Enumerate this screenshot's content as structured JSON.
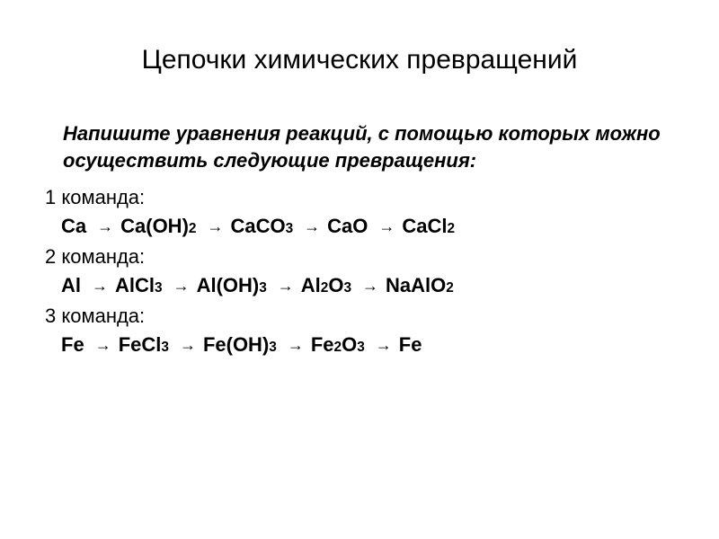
{
  "title": "Цепочки химических превращений",
  "instruction": "Напишите уравнения реакций, с помощью которых можно осуществить следующие превращения:",
  "teams": [
    {
      "label": "1 команда:",
      "chain": [
        "Ca",
        "Ca(OH)₂",
        "CaCO₃",
        "CaO",
        "CaCl₂"
      ]
    },
    {
      "label": "2 команда:",
      "chain": [
        "Al",
        "AlCl₃",
        "Al(OH)₃",
        "Al₂O₃",
        "NaAlO₂"
      ]
    },
    {
      "label": "3 команда:",
      "chain": [
        "Fe",
        "FeCl₃",
        "Fe(OH)₃",
        "Fe₂O₃",
        "Fe"
      ]
    }
  ],
  "styling": {
    "background_color": "#ffffff",
    "text_color": "#000000",
    "title_fontsize": 30,
    "body_fontsize": 22,
    "font_family": "Arial, sans-serif",
    "arrow_glyph": "→",
    "arrow_color": "#000000"
  }
}
